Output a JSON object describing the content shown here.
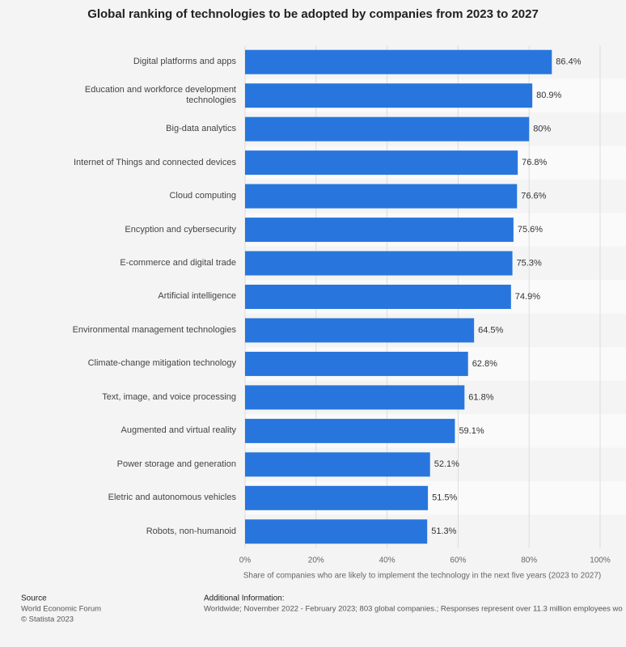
{
  "chart_data": {
    "type": "bar",
    "orientation": "horizontal",
    "title": "Global ranking of technologies to be adopted by companies from 2023 to 2027",
    "categories": [
      "Digital platforms and apps",
      "Education and workforce development technologies",
      "Big-data analytics",
      "Internet of Things and connected devices",
      "Cloud computing",
      "Encyption and cybersecurity",
      "E-commerce and digital trade",
      "Artificial intelligence",
      "Environmental management technologies",
      "Climate-change mitigation technology",
      "Text, image, and voice processing",
      "Augmented and virtual reality",
      "Power storage and generation",
      "Eletric and autonomous vehicles",
      "Robots, non-humanoid"
    ],
    "values": [
      86.4,
      80.9,
      80,
      76.8,
      76.6,
      75.6,
      75.3,
      74.9,
      64.5,
      62.8,
      61.8,
      59.1,
      52.1,
      51.5,
      51.3
    ],
    "value_labels": [
      "86.4%",
      "80.9%",
      "80%",
      "76.8%",
      "76.6%",
      "75.6%",
      "75.3%",
      "74.9%",
      "64.5%",
      "62.8%",
      "61.8%",
      "59.1%",
      "52.1%",
      "51.5%",
      "51.3%"
    ],
    "color": "#2876dd",
    "xlim": [
      0,
      100
    ],
    "xticks": [
      {
        "value": 0,
        "label": "0%"
      },
      {
        "value": 20,
        "label": "20%"
      },
      {
        "value": 40,
        "label": "40%"
      },
      {
        "value": 60,
        "label": "60%"
      },
      {
        "value": 80,
        "label": "80%"
      },
      {
        "value": 100,
        "label": "100%"
      }
    ],
    "xlabel": "Share of companies who are likely to implement the technology in the next five years (2023 to 2027)",
    "grid": true,
    "source_title": "Source",
    "source": "World Economic Forum",
    "copyright": "© Statista 2023",
    "additional_info_title": "Additional Information:",
    "additional_info": "Worldwide; November 2022 - February 2023; 803 global companies.; Responses represent over 11.3 million employees wo"
  }
}
